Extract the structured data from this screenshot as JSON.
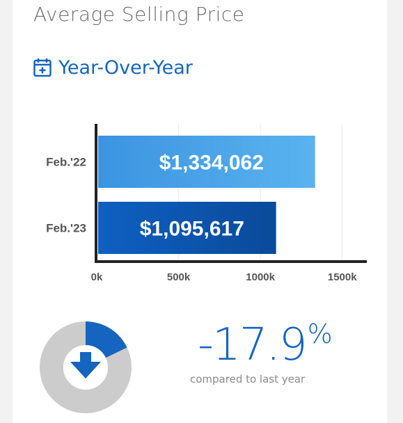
{
  "header": {
    "title": "Average Selling Price",
    "subtitle": "Year-Over-Year",
    "subtitle_icon": "calendar-plus-icon"
  },
  "colors": {
    "accent": "#1565c0",
    "bar_light": "#4aa3e8",
    "bar_dark": "#0d56b0",
    "donut_track": "#cccccc",
    "title_gray": "#6d6d6d"
  },
  "chart_data": {
    "type": "bar",
    "orientation": "horizontal",
    "categories": [
      "Feb.'22",
      "Feb.'23"
    ],
    "values": [
      1334062,
      1095617
    ],
    "value_labels": [
      "$1,334,062",
      "$1,095,617"
    ],
    "xticks": [
      "0k",
      "500k",
      "1000k",
      "1500k"
    ],
    "xtick_values": [
      0,
      500000,
      1000000,
      1500000
    ],
    "xlim": [
      0,
      1650000
    ],
    "grid": true
  },
  "change": {
    "value": "-17.9",
    "unit": "%",
    "caption": "compared to last year",
    "fraction": 0.179,
    "direction_icon": "arrow-down-icon"
  }
}
